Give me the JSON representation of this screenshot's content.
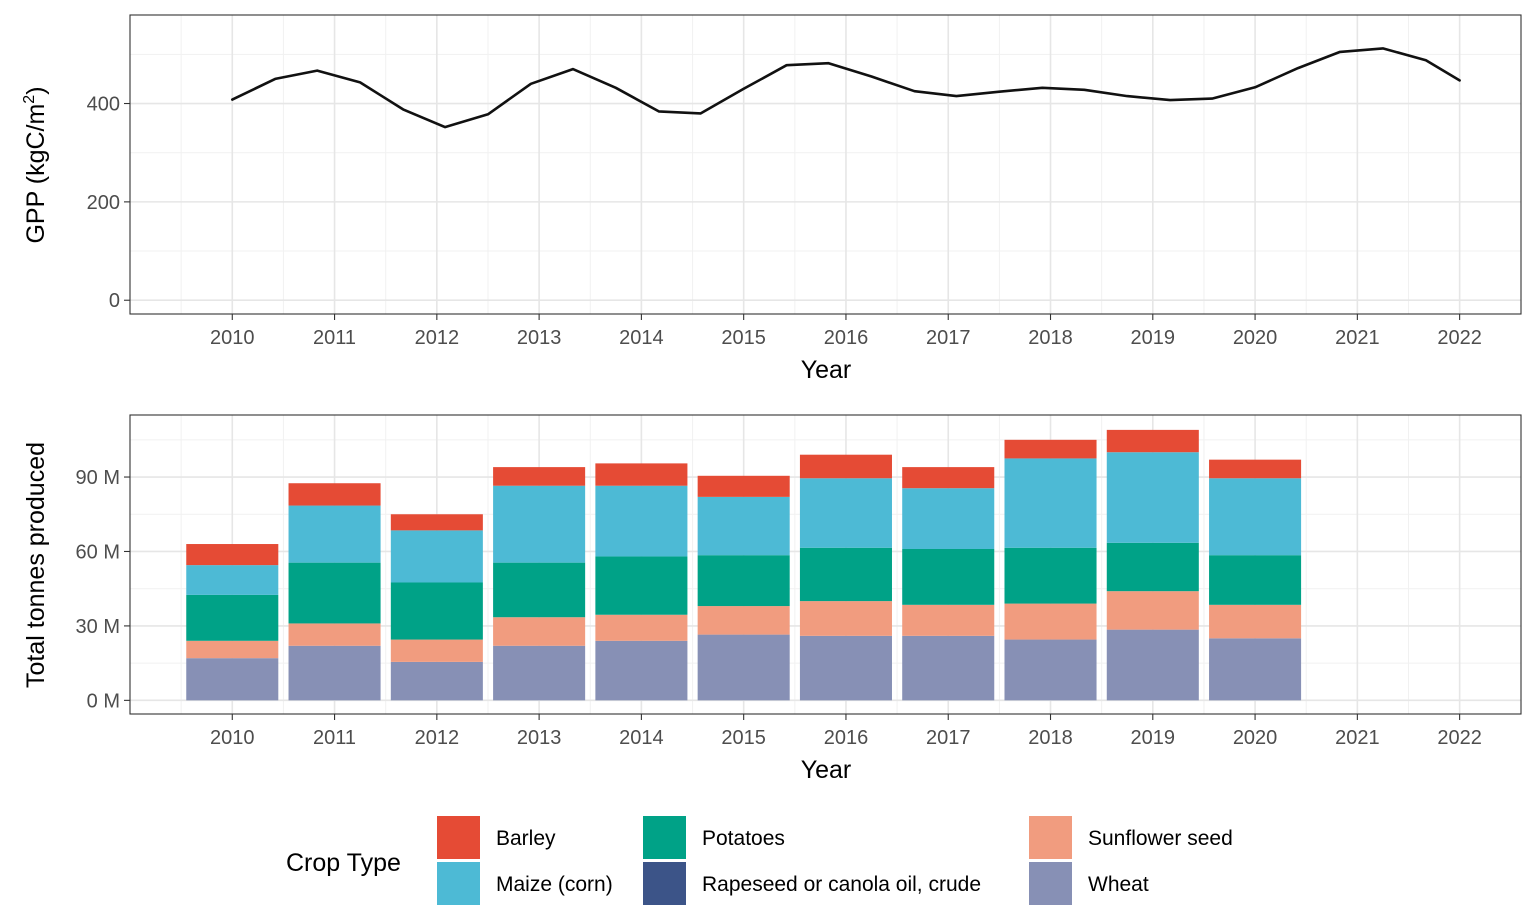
{
  "chart_data": [
    {
      "type": "line",
      "xlabel": "Year",
      "ylabel_main": "GPP (kgC/m",
      "ylabel_sup": "2",
      "ylabel_close": ")",
      "xlim": [
        2009,
        2022.6
      ],
      "ylim": [
        -28,
        580
      ],
      "x_ticks": [
        2010,
        2011,
        2012,
        2013,
        2014,
        2015,
        2016,
        2017,
        2018,
        2019,
        2020,
        2021,
        2022
      ],
      "y_ticks": [
        0,
        200,
        400
      ],
      "grid": true,
      "line_color": "#111111",
      "x": [
        2010,
        2010.42,
        2010.83,
        2011.25,
        2011.67,
        2012.08,
        2012.5,
        2012.92,
        2013.33,
        2013.75,
        2014.17,
        2014.58,
        2015,
        2015.42,
        2015.83,
        2016.25,
        2016.67,
        2017.08,
        2017.5,
        2017.92,
        2018.33,
        2018.75,
        2019.17,
        2019.58,
        2020,
        2020.42,
        2020.83,
        2021.25,
        2021.67,
        2022
      ],
      "y": [
        408,
        450,
        467,
        443,
        388,
        352,
        378,
        440,
        470,
        432,
        384,
        380,
        430,
        478,
        482,
        455,
        425,
        415,
        424,
        432,
        428,
        415,
        407,
        410,
        433,
        472,
        505,
        512,
        488,
        447
      ]
    },
    {
      "type": "bar",
      "stacked": true,
      "xlabel": "Year",
      "ylabel": "Total tonnes produced",
      "xlim": [
        2009,
        2022.6
      ],
      "ylim": [
        -5.5,
        115
      ],
      "x_ticks": [
        2010,
        2011,
        2012,
        2013,
        2014,
        2015,
        2016,
        2017,
        2018,
        2019,
        2020,
        2021,
        2022
      ],
      "y_ticks": [
        0,
        30,
        60,
        90
      ],
      "y_tick_labels": [
        "0 M",
        "30 M",
        "60 M",
        "90 M"
      ],
      "grid": true,
      "categories": [
        2010,
        2011,
        2012,
        2013,
        2014,
        2015,
        2016,
        2017,
        2018,
        2019,
        2020
      ],
      "stack_order": [
        "Wheat",
        "Sunflower seed",
        "Potatoes",
        "Maize (corn)",
        "Barley"
      ],
      "series": [
        {
          "name": "Wheat",
          "color": "#8790b5",
          "values": [
            17,
            22,
            15.5,
            22,
            24,
            26.5,
            26,
            26,
            24.5,
            28.5,
            25
          ]
        },
        {
          "name": "Sunflower seed",
          "color": "#f19c7f",
          "values": [
            7,
            9,
            9,
            11.5,
            10.5,
            11.5,
            14,
            12.5,
            14.5,
            15.5,
            13.5
          ]
        },
        {
          "name": "Potatoes",
          "color": "#00a287",
          "values": [
            18.5,
            24.5,
            23,
            22,
            23.5,
            20.5,
            21.5,
            22.5,
            22.5,
            19.5,
            20
          ]
        },
        {
          "name": "Maize (corn)",
          "color": "#4dbad5",
          "values": [
            12,
            23,
            21,
            31,
            28.5,
            23.5,
            28,
            24.5,
            36,
            36.5,
            31
          ]
        },
        {
          "name": "Barley",
          "color": "#e54b35",
          "values": [
            8.5,
            9,
            6.5,
            7.5,
            9,
            8.5,
            9.5,
            8.5,
            7.5,
            9,
            7.5
          ]
        }
      ]
    }
  ],
  "legend": {
    "title": "Crop Type",
    "items": [
      {
        "name": "Barley",
        "color": "#e54b35"
      },
      {
        "name": "Maize (corn)",
        "color": "#4dbad5"
      },
      {
        "name": "Potatoes",
        "color": "#00a287"
      },
      {
        "name": "Rapeseed or canola oil, crude",
        "color": "#3c5488"
      },
      {
        "name": "Sunflower seed",
        "color": "#f19c7f"
      },
      {
        "name": "Wheat",
        "color": "#8790b5"
      }
    ]
  }
}
